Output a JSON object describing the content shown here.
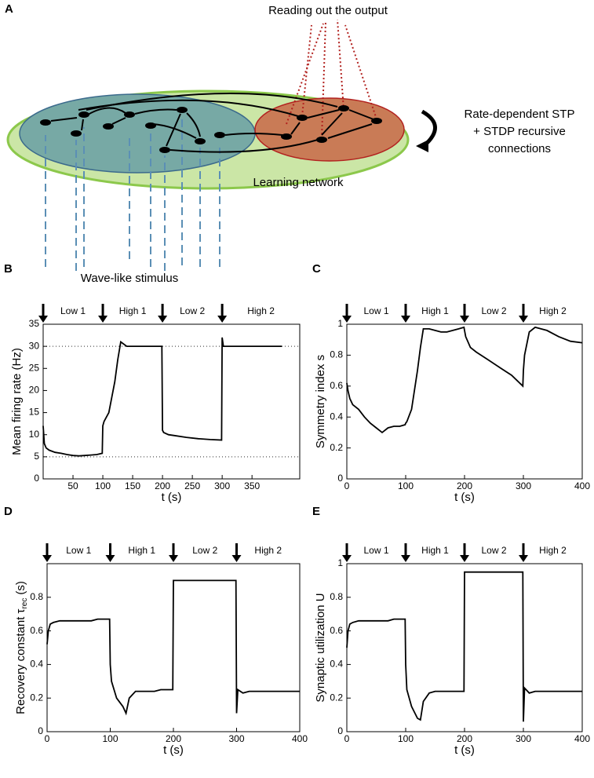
{
  "diagram": {
    "panel": "A",
    "readout": "Reading out the output",
    "stp_lines": [
      "Rate-dependent STP",
      "+ STDP recursive",
      "connections"
    ],
    "network": "Learning network",
    "stimulus": "Wave-like stimulus"
  },
  "chart_data": [
    {
      "type": "line",
      "panel": "B",
      "ylabel": "Mean firing rate (Hz)",
      "xlabel": "t (s)",
      "phase_starts": [
        0,
        100,
        200,
        300
      ],
      "phase_labels": [
        "Low 1",
        "High 1",
        "Low 2",
        "High 2"
      ],
      "xlim": [
        0,
        430
      ],
      "ylim": [
        0,
        35
      ],
      "xticks": [
        50,
        100,
        150,
        200,
        250,
        300,
        350
      ],
      "yticks": [
        0,
        5,
        10,
        15,
        20,
        25,
        30,
        35
      ],
      "hlines": [
        5,
        30
      ],
      "x": [
        0,
        2,
        5,
        10,
        20,
        30,
        40,
        50,
        60,
        70,
        80,
        90,
        99,
        100,
        102,
        110,
        120,
        125,
        130,
        140,
        150,
        160,
        170,
        180,
        190,
        199,
        200,
        202,
        210,
        220,
        240,
        260,
        280,
        299,
        300,
        302,
        310,
        320,
        340,
        360,
        380,
        400
      ],
      "series": [
        {
          "color": "#000000",
          "values": [
            12,
            8,
            7,
            6.5,
            6,
            5.8,
            5.5,
            5.3,
            5.2,
            5.3,
            5.4,
            5.5,
            5.8,
            12,
            13,
            15,
            22,
            27,
            31,
            30,
            30,
            30,
            30,
            30,
            30,
            30,
            11,
            10.5,
            10,
            9.8,
            9.4,
            9.1,
            8.9,
            8.8,
            32,
            30,
            30,
            30,
            30,
            30,
            30,
            30
          ]
        }
      ]
    },
    {
      "type": "line",
      "panel": "C",
      "ylabel": "Symmetry index s",
      "xlabel": "t (s)",
      "phase_starts": [
        0,
        100,
        200,
        300
      ],
      "phase_labels": [
        "Low 1",
        "High 1",
        "Low 2",
        "High 2"
      ],
      "xlim": [
        0,
        400
      ],
      "ylim": [
        0,
        1
      ],
      "xticks": [
        0,
        100,
        200,
        300,
        400
      ],
      "yticks": [
        0,
        0.2,
        0.4,
        0.6,
        0.8,
        1
      ],
      "x": [
        0,
        2,
        5,
        10,
        20,
        30,
        40,
        50,
        60,
        70,
        80,
        90,
        99,
        100,
        102,
        110,
        120,
        125,
        130,
        140,
        150,
        160,
        170,
        180,
        190,
        199,
        200,
        202,
        210,
        220,
        240,
        260,
        280,
        299,
        300,
        302,
        310,
        320,
        340,
        360,
        380,
        400
      ],
      "series": [
        {
          "color": "#000000",
          "values": [
            0.62,
            0.57,
            0.52,
            0.48,
            0.45,
            0.4,
            0.36,
            0.33,
            0.3,
            0.33,
            0.34,
            0.34,
            0.35,
            0.36,
            0.37,
            0.45,
            0.7,
            0.85,
            0.97,
            0.97,
            0.96,
            0.95,
            0.95,
            0.96,
            0.97,
            0.98,
            0.96,
            0.92,
            0.85,
            0.82,
            0.77,
            0.72,
            0.67,
            0.6,
            0.7,
            0.8,
            0.95,
            0.98,
            0.96,
            0.92,
            0.89,
            0.88
          ]
        }
      ]
    },
    {
      "type": "line",
      "panel": "D",
      "ylabel": "Recovery constant τ",
      "ylabel_sub": "rec",
      "ylabel_unit": "(s)",
      "xlabel": "t (s)",
      "phase_starts": [
        0,
        100,
        200,
        300
      ],
      "phase_labels": [
        "Low 1",
        "High 1",
        "Low 2",
        "High 2"
      ],
      "xlim": [
        0,
        400
      ],
      "ylim": [
        0,
        1
      ],
      "xticks": [
        0,
        100,
        200,
        300,
        400
      ],
      "yticks": [
        0,
        0.2,
        0.4,
        0.6,
        0.8
      ],
      "x": [
        0,
        2,
        5,
        10,
        20,
        30,
        40,
        50,
        60,
        70,
        80,
        90,
        99,
        100,
        102,
        110,
        120,
        125,
        130,
        140,
        150,
        160,
        170,
        180,
        190,
        199,
        200,
        202,
        210,
        220,
        240,
        260,
        280,
        299,
        300,
        302,
        310,
        320,
        340,
        360,
        380,
        400
      ],
      "series": [
        {
          "color": "#000000",
          "values": [
            0.52,
            0.6,
            0.64,
            0.65,
            0.66,
            0.66,
            0.66,
            0.66,
            0.66,
            0.66,
            0.67,
            0.67,
            0.67,
            0.4,
            0.3,
            0.2,
            0.15,
            0.11,
            0.2,
            0.24,
            0.24,
            0.24,
            0.24,
            0.25,
            0.25,
            0.25,
            0.9,
            0.9,
            0.9,
            0.9,
            0.9,
            0.9,
            0.9,
            0.9,
            0.11,
            0.25,
            0.23,
            0.24,
            0.24,
            0.24,
            0.24,
            0.24
          ]
        }
      ]
    },
    {
      "type": "line",
      "panel": "E",
      "ylabel": "Synaptic utilization U",
      "xlabel": "t (s)",
      "phase_starts": [
        0,
        100,
        200,
        300
      ],
      "phase_labels": [
        "Low 1",
        "High 1",
        "Low 2",
        "High 2"
      ],
      "xlim": [
        0,
        400
      ],
      "ylim": [
        0,
        1
      ],
      "xticks": [
        0,
        100,
        200,
        300,
        400
      ],
      "yticks": [
        0,
        0.2,
        0.4,
        0.6,
        0.8,
        1
      ],
      "x": [
        0,
        2,
        5,
        10,
        20,
        30,
        40,
        50,
        60,
        70,
        80,
        90,
        99,
        100,
        102,
        110,
        120,
        125,
        130,
        140,
        150,
        160,
        170,
        180,
        190,
        199,
        200,
        202,
        210,
        220,
        240,
        260,
        280,
        299,
        300,
        302,
        310,
        320,
        340,
        360,
        380,
        400
      ],
      "series": [
        {
          "color": "#000000",
          "values": [
            0.5,
            0.6,
            0.64,
            0.65,
            0.66,
            0.66,
            0.66,
            0.66,
            0.66,
            0.66,
            0.67,
            0.67,
            0.67,
            0.4,
            0.25,
            0.15,
            0.08,
            0.07,
            0.18,
            0.23,
            0.24,
            0.24,
            0.24,
            0.24,
            0.24,
            0.24,
            0.95,
            0.95,
            0.95,
            0.95,
            0.95,
            0.95,
            0.95,
            0.95,
            0.06,
            0.26,
            0.23,
            0.24,
            0.24,
            0.24,
            0.24,
            0.24
          ]
        }
      ]
    }
  ]
}
